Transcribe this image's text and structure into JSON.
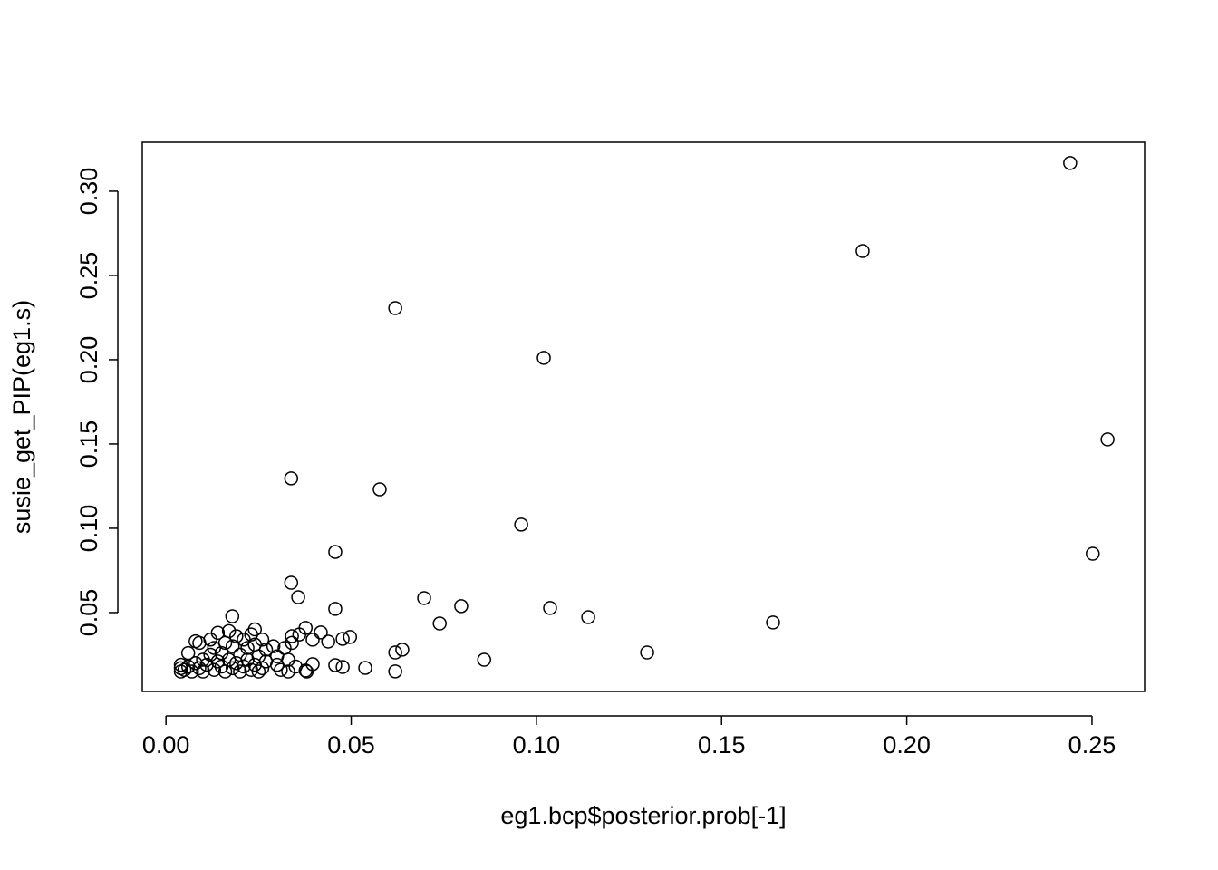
{
  "chart_data": {
    "type": "scatter",
    "x_label": "eg1.bcp$posterior.prob[-1]",
    "y_label": "susie_get_PIP(eg1.s)",
    "color": "#000000",
    "xlim": [
      -0.0064,
      0.2642
    ],
    "ylim": [
      0.0032,
      0.329
    ],
    "xticks": [
      {
        "value": 0,
        "label": "0.00"
      },
      0.05,
      {
        "value": 0.1,
        "label": "0.10"
      },
      0.15,
      {
        "value": 0.2,
        "label": "0.20"
      },
      0.25
    ],
    "yticks": [
      0.05,
      {
        "value": 0.1,
        "label": "0.10"
      },
      0.15,
      {
        "value": 0.2,
        "label": "0.20"
      },
      0.25,
      {
        "value": 0.3,
        "label": "0.30"
      }
    ],
    "x": [
      0.2441,
      0.1881,
      0.0619,
      0.102,
      0.2542,
      0.0338,
      0.0577,
      0.0959,
      0.2502,
      0.0457,
      0.0338,
      0.0357,
      0.0457,
      0.0697,
      0.0797,
      0.1037,
      0.114,
      0.0739,
      0.1639,
      0.1299,
      0.0859,
      0.0619,
      0.0638,
      0.0619,
      0.0538,
      0.0477,
      0.0457,
      0.0497,
      0.0477,
      0.0438,
      0.0418,
      0.0377,
      0.0396,
      0.0377,
      0.0396,
      0.0179,
      0.004,
      0.004,
      0.004,
      0.005,
      0.006,
      0.006,
      0.007,
      0.008,
      0.008,
      0.009,
      0.009,
      0.01,
      0.01,
      0.011,
      0.012,
      0.012,
      0.013,
      0.013,
      0.014,
      0.014,
      0.015,
      0.015,
      0.016,
      0.016,
      0.017,
      0.017,
      0.018,
      0.018,
      0.019,
      0.019,
      0.02,
      0.02,
      0.021,
      0.021,
      0.022,
      0.022,
      0.023,
      0.023,
      0.024,
      0.024,
      0.024,
      0.025,
      0.025,
      0.026,
      0.026,
      0.027,
      0.027,
      0.029,
      0.03,
      0.03,
      0.031,
      0.032,
      0.033,
      0.033,
      0.034,
      0.034,
      0.035,
      0.036,
      0.038
    ],
    "values": [
      0.3167,
      0.2645,
      0.2306,
      0.2011,
      0.1527,
      0.1296,
      0.1231,
      0.1022,
      0.0849,
      0.086,
      0.0677,
      0.0591,
      0.0522,
      0.0586,
      0.0538,
      0.0527,
      0.0473,
      0.0435,
      0.0441,
      0.0263,
      0.022,
      0.0263,
      0.028,
      0.0151,
      0.0172,
      0.0177,
      0.0188,
      0.0355,
      0.0344,
      0.0328,
      0.0382,
      0.0409,
      0.0339,
      0.0156,
      0.0194,
      0.0478,
      0.015,
      0.017,
      0.019,
      0.016,
      0.018,
      0.026,
      0.015,
      0.02,
      0.033,
      0.032,
      0.017,
      0.022,
      0.015,
      0.019,
      0.034,
      0.025,
      0.016,
      0.029,
      0.021,
      0.038,
      0.018,
      0.026,
      0.032,
      0.015,
      0.039,
      0.022,
      0.017,
      0.03,
      0.036,
      0.02,
      0.025,
      0.015,
      0.018,
      0.034,
      0.022,
      0.029,
      0.016,
      0.037,
      0.04,
      0.019,
      0.031,
      0.024,
      0.015,
      0.034,
      0.017,
      0.021,
      0.028,
      0.03,
      0.019,
      0.024,
      0.016,
      0.029,
      0.015,
      0.022,
      0.032,
      0.036,
      0.018,
      0.037,
      0.015
    ]
  }
}
